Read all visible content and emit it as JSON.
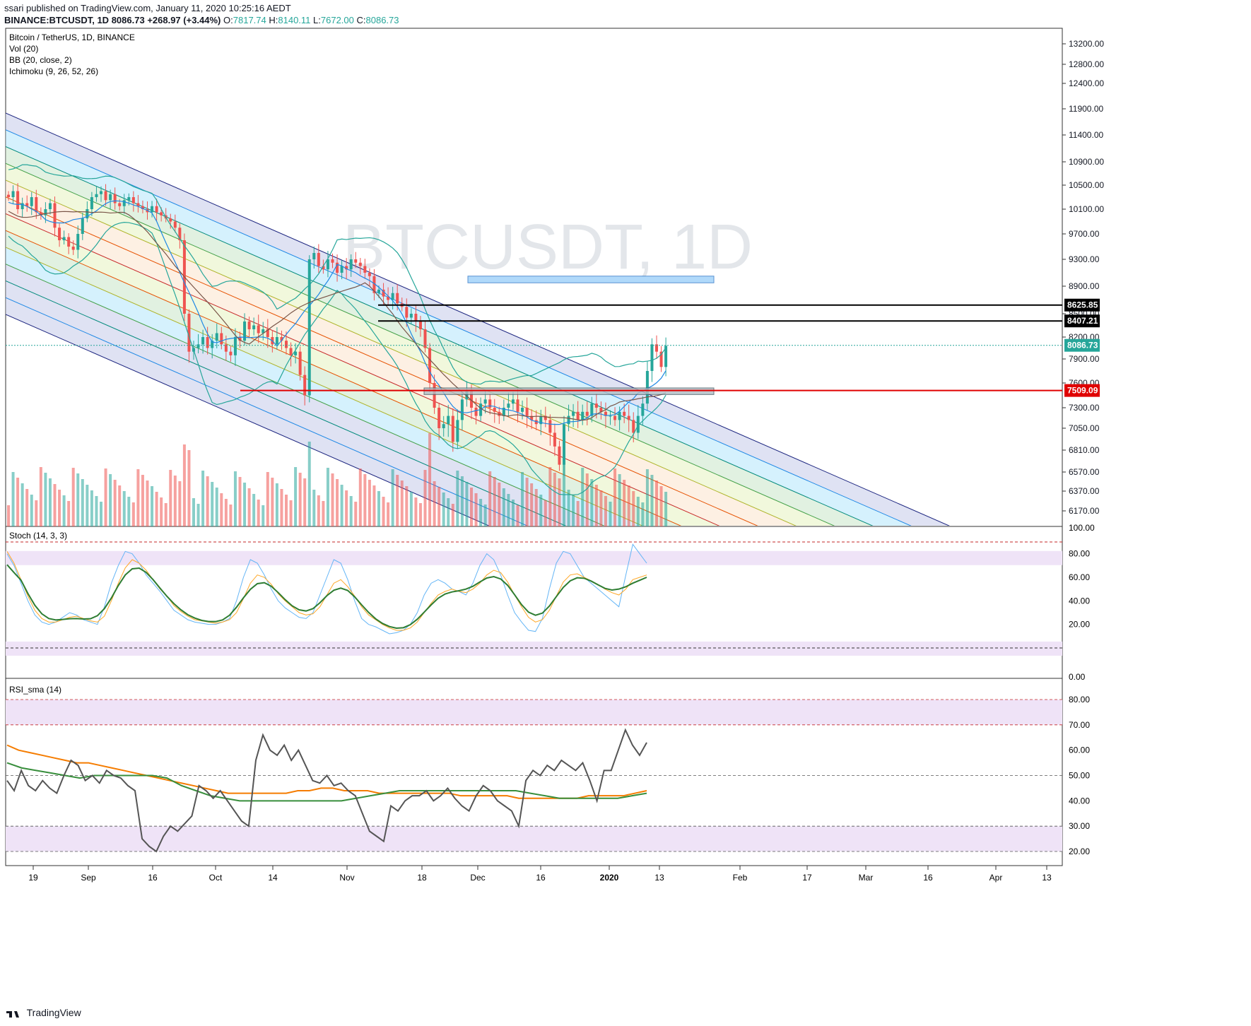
{
  "header": {
    "publisher_line": "ssari published on TradingView.com, January 11, 2020 10:25:16 AEDT",
    "symbol": "BINANCE:BTCUSDT, 1D",
    "last": "8086.73",
    "change": "+268.97 (+3.44%)",
    "open": "7817.74",
    "high": "8140.11",
    "low": "7672.00",
    "close": "8086.73"
  },
  "legend": {
    "title": "Bitcoin / TetherUS, 1D, BINANCE",
    "vol": "Vol (20)",
    "bb": "BB (20, close, 2)",
    "ichimoku": "Ichimoku (9, 26, 52, 26)",
    "stoch": "Stoch (14, 3, 3)",
    "rsi": "RSI_sma (14)"
  },
  "watermark": "BTCUSDT, 1D",
  "footer": {
    "brand": "TradingView"
  },
  "colors": {
    "up": "#26a69a",
    "down": "#ef5350",
    "channel": "#1a237e",
    "bb": "#26a69a",
    "rsi": "#555555",
    "rsi_ma_orange": "#f57c00",
    "rsi_ma_green": "#388e3c",
    "level_red": "#e00000",
    "level_black": "#000000",
    "band_fill": "#efe3f7"
  },
  "chart_data": [
    {
      "type": "candlestick",
      "pane": "price",
      "price_axis": [
        "13200.00",
        "12800.00",
        "12400.00",
        "11900.00",
        "11400.00",
        "10900.00",
        "10500.00",
        "10100.00",
        "9700.00",
        "9300.00",
        "8900.00",
        "8500.00",
        "8200.00",
        "7900.00",
        "7600.00",
        "7300.00",
        "7050.00",
        "6810.00",
        "6570.00",
        "6370.00",
        "6170.00"
      ],
      "time_axis": [
        "19",
        "Sep",
        "16",
        "Oct",
        "14",
        "Nov",
        "18",
        "Dec",
        "16",
        "2020",
        "13",
        "Feb",
        "17",
        "Mar",
        "16",
        "Apr",
        "13"
      ],
      "price_labels": [
        {
          "value": "8625.85",
          "style": "black"
        },
        {
          "value": "8407.21",
          "style": "black"
        },
        {
          "value": "8086.73",
          "style": "teal"
        },
        {
          "value": "7509.09",
          "style": "red"
        }
      ],
      "horizontal_levels": [
        8625.85,
        8407.21,
        7509.09
      ],
      "boxes": [
        {
          "name": "resistance-zone",
          "low": 8950,
          "high": 9050
        },
        {
          "name": "support-zone",
          "low": 7460,
          "high": 7540
        }
      ],
      "close_series": [
        10300,
        10400,
        10100,
        10200,
        10150,
        10300,
        10050,
        10000,
        10100,
        10200,
        9800,
        9600,
        9650,
        9500,
        9450,
        9700,
        9950,
        10100,
        10300,
        10350,
        10400,
        10250,
        10350,
        10200,
        10150,
        10250,
        10300,
        10200,
        10150,
        10100,
        10050,
        10150,
        10050,
        10000,
        9950,
        9900,
        9800,
        9600,
        8500,
        8000,
        8050,
        8100,
        8200,
        8050,
        8150,
        8250,
        8100,
        8000,
        7950,
        8200,
        8150,
        8400,
        8300,
        8350,
        8250,
        8300,
        8200,
        8100,
        8200,
        8150,
        8050,
        7950,
        8000,
        7700,
        7450,
        9300,
        9400,
        9200,
        9150,
        9300,
        9250,
        9100,
        9200,
        9150,
        9300,
        9250,
        9200,
        9100,
        9050,
        8800,
        8850,
        8750,
        8700,
        8800,
        8650,
        8600,
        8450,
        8500,
        8400,
        8300,
        8050,
        7600,
        7300,
        7050,
        7100,
        7200,
        6900,
        7150,
        7400,
        7500,
        7300,
        7200,
        7350,
        7400,
        7300,
        7250,
        7200,
        7300,
        7350,
        7400,
        7250,
        7300,
        7200,
        7150,
        7100,
        7200,
        7150,
        7000,
        6850,
        6650,
        7100,
        7200,
        7250,
        7150,
        7250,
        7200,
        7350,
        7300,
        7250,
        7200,
        7200,
        7150,
        7250,
        7200,
        7150,
        7000,
        7200,
        7350,
        7750,
        8100,
        8000,
        7800,
        8080
      ]
    },
    {
      "type": "line",
      "pane": "stochastic",
      "axis": [
        "100.00",
        "80.00",
        "60.00",
        "40.00",
        "20.00",
        "0.00"
      ],
      "bands": [
        20,
        80
      ],
      "ylim": [
        0,
        100
      ],
      "k": [
        80,
        70,
        55,
        40,
        28,
        22,
        20,
        22,
        26,
        30,
        28,
        24,
        22,
        20,
        35,
        55,
        70,
        82,
        80,
        72,
        62,
        55,
        48,
        40,
        32,
        28,
        24,
        22,
        21,
        20,
        20,
        22,
        25,
        40,
        60,
        75,
        72,
        62,
        50,
        40,
        34,
        30,
        26,
        25,
        30,
        45,
        60,
        75,
        72,
        58,
        40,
        25,
        20,
        18,
        15,
        12,
        13,
        15,
        20,
        30,
        45,
        55,
        58,
        55,
        50,
        48,
        45,
        55,
        70,
        80,
        75,
        62,
        45,
        30,
        22,
        15,
        14,
        25,
        50,
        72,
        82,
        80,
        70,
        60,
        55,
        50,
        45,
        40,
        35,
        62,
        88,
        80,
        72
      ],
      "d": [
        82,
        72,
        58,
        44,
        32,
        25,
        22,
        22,
        24,
        26,
        27,
        25,
        23,
        22,
        27,
        40,
        55,
        68,
        75,
        72,
        66,
        58,
        50,
        44,
        36,
        31,
        27,
        24,
        23,
        22,
        21,
        22,
        24,
        30,
        42,
        55,
        62,
        60,
        54,
        46,
        40,
        35,
        30,
        28,
        29,
        35,
        45,
        55,
        58,
        52,
        44,
        35,
        28,
        24,
        20,
        17,
        15,
        15,
        17,
        22,
        30,
        38,
        45,
        48,
        50,
        48,
        47,
        50,
        55,
        62,
        66,
        64,
        56,
        45,
        35,
        26,
        22,
        24,
        32,
        44,
        56,
        62,
        63,
        60,
        57,
        54,
        50,
        47,
        45,
        50,
        58,
        60,
        62
      ]
    },
    {
      "type": "line",
      "pane": "rsi",
      "axis": [
        "80.00",
        "70.00",
        "60.00",
        "50.00",
        "40.00",
        "30.00",
        "20.00"
      ],
      "bands": [
        30,
        70
      ],
      "mid": 50,
      "ylim": [
        15,
        85
      ],
      "rsi": [
        48,
        44,
        52,
        46,
        44,
        48,
        45,
        43,
        50,
        56,
        54,
        48,
        50,
        47,
        52,
        50,
        49,
        46,
        44,
        25,
        22,
        20,
        26,
        30,
        28,
        31,
        34,
        46,
        44,
        41,
        44,
        40,
        36,
        32,
        30,
        56,
        66,
        60,
        58,
        62,
        56,
        60,
        54,
        48,
        47,
        50,
        46,
        47,
        44,
        42,
        35,
        28,
        26,
        24,
        38,
        36,
        40,
        42,
        42,
        44,
        40,
        42,
        45,
        41,
        38,
        36,
        42,
        46,
        44,
        40,
        38,
        36,
        30,
        48,
        52,
        50,
        54,
        52,
        56,
        54,
        52,
        55,
        48,
        40,
        52,
        52,
        60,
        68,
        62,
        58,
        63
      ],
      "sma_orange": [
        62,
        60,
        59,
        58,
        57,
        56,
        55,
        55,
        54,
        53,
        52,
        51,
        50,
        49,
        48,
        47,
        46,
        45,
        44,
        43,
        43,
        43,
        43,
        43,
        43,
        44,
        44,
        45,
        45,
        44,
        44,
        44,
        43,
        43,
        43,
        43,
        43,
        43,
        43,
        42,
        42,
        42,
        42,
        42,
        41,
        41,
        41,
        41,
        41,
        41,
        42,
        42,
        42,
        42,
        43,
        44
      ],
      "sma_green": [
        55,
        53,
        52,
        51,
        50,
        49,
        50,
        50,
        50,
        50,
        50,
        49,
        46,
        44,
        42,
        41,
        40,
        40,
        40,
        40,
        40,
        40,
        40,
        40,
        41,
        42,
        43,
        44,
        44,
        44,
        44,
        44,
        44,
        44,
        44,
        44,
        43,
        42,
        41,
        41,
        41,
        41,
        41,
        42,
        43
      ]
    }
  ]
}
